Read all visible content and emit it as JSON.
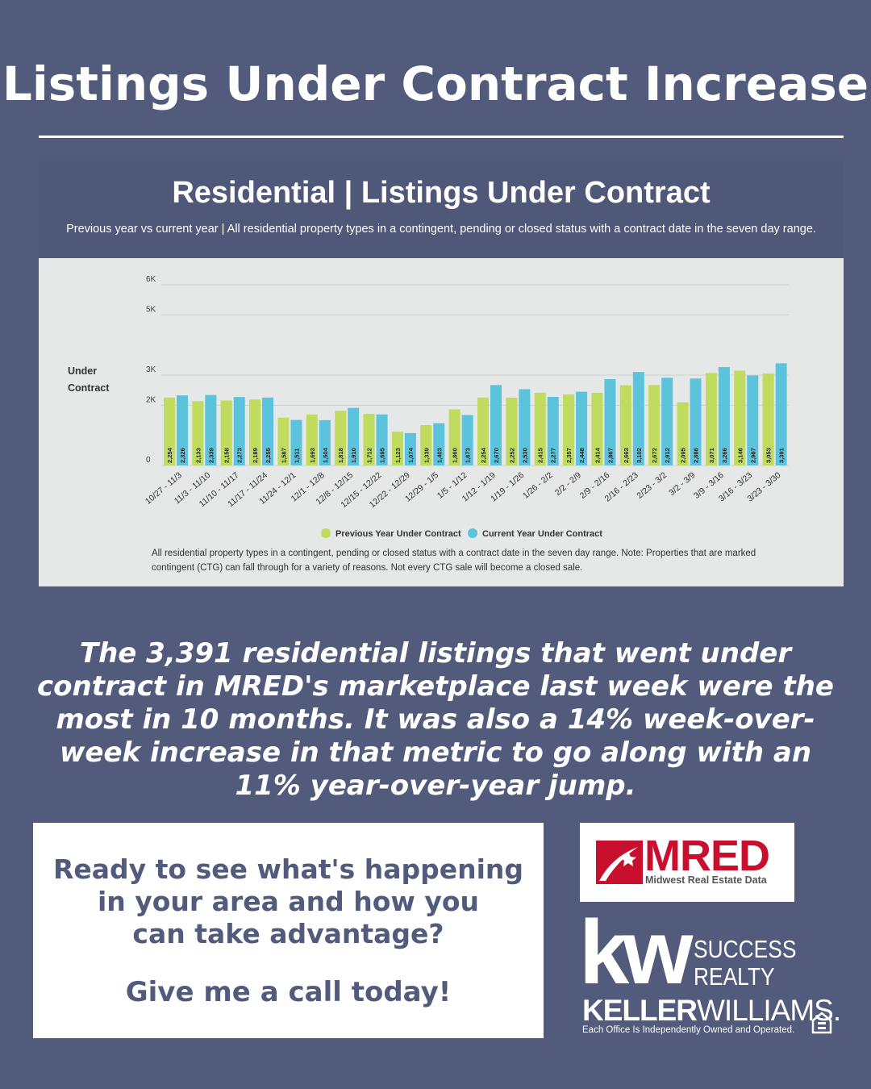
{
  "headline": "Listings Under Contract Increase",
  "chart_header": {
    "title": "Residential | Listings Under Contract",
    "subtitle": "Previous year vs current year | All residential property types in a contingent, pending or closed status with a contract date in the seven day range."
  },
  "chart_data": {
    "type": "bar",
    "ylabel": "Under Contract",
    "ylim": [
      0,
      6000
    ],
    "yticks": [
      "0",
      "2K",
      "3K",
      "5K",
      "6K"
    ],
    "grid": true,
    "legend_position": "bottom",
    "colors": [
      "#bfdc5e",
      "#5cc3dd"
    ],
    "categories": [
      "10/27 - 11/3",
      "11/3 - 11/10",
      "11/10 - 11/17",
      "11/17 - 11/24",
      "11/24 - 12/1",
      "12/1 - 12/8",
      "12/8 - 12/15",
      "12/15 - 12/22",
      "12/22 - 12/29",
      "12/29 - 1/5",
      "1/5 - 1/12",
      "1/12 - 1/19",
      "1/19 - 1/26",
      "1/26 - 2/2",
      "2/2 - 2/9",
      "2/9 - 2/16",
      "2/16 - 2/23",
      "2/23 - 3/2",
      "3/2 - 3/9",
      "3/9 - 3/16",
      "3/16 - 3/23",
      "3/23 - 3/30"
    ],
    "series": [
      {
        "name": "Previous Year Under Contract",
        "values": [
          2254,
          2133,
          2158,
          2189,
          1587,
          1693,
          1818,
          1712,
          1123,
          1339,
          1860,
          2254,
          2252,
          2415,
          2357,
          2414,
          2663,
          2672,
          2095,
          3071,
          3146,
          3053
        ]
      },
      {
        "name": "Current Year Under Contract",
        "values": [
          2326,
          2339,
          2273,
          2255,
          1511,
          1504,
          1910,
          1695,
          1074,
          1403,
          1673,
          2670,
          2530,
          2277,
          2448,
          2867,
          3102,
          2912,
          2886,
          3266,
          2987,
          3391
        ]
      }
    ],
    "note": "All residential property types in a contingent, pending or closed status with a contract date in the seven day range. Note: Properties that are marked contingent (CTG) can fall through for a variety of reasons. Not every CTG sale will become a closed sale."
  },
  "summary": "The 3,391 residential listings that went under contract in MRED's marketplace last week were the most in 10 months. It was also a 14% week-over-week increase in that metric to go along with an 11% year-over-year jump.",
  "cta": {
    "line1": "Ready to see what's happening",
    "line2": "in your area and how you",
    "line3": "can take advantage?",
    "call": "Give me a call today!"
  },
  "mred": {
    "wordmark": "MRED",
    "subtitle": "Midwest Real Estate Data"
  },
  "kw": {
    "mark": "kw",
    "brand_line1": "SUCCESS",
    "brand_line2": "REALTY",
    "name_bold": "KELLER",
    "name_light": "WILLIAMS.",
    "tagline": "Each Office Is Independently Owned and Operated."
  }
}
